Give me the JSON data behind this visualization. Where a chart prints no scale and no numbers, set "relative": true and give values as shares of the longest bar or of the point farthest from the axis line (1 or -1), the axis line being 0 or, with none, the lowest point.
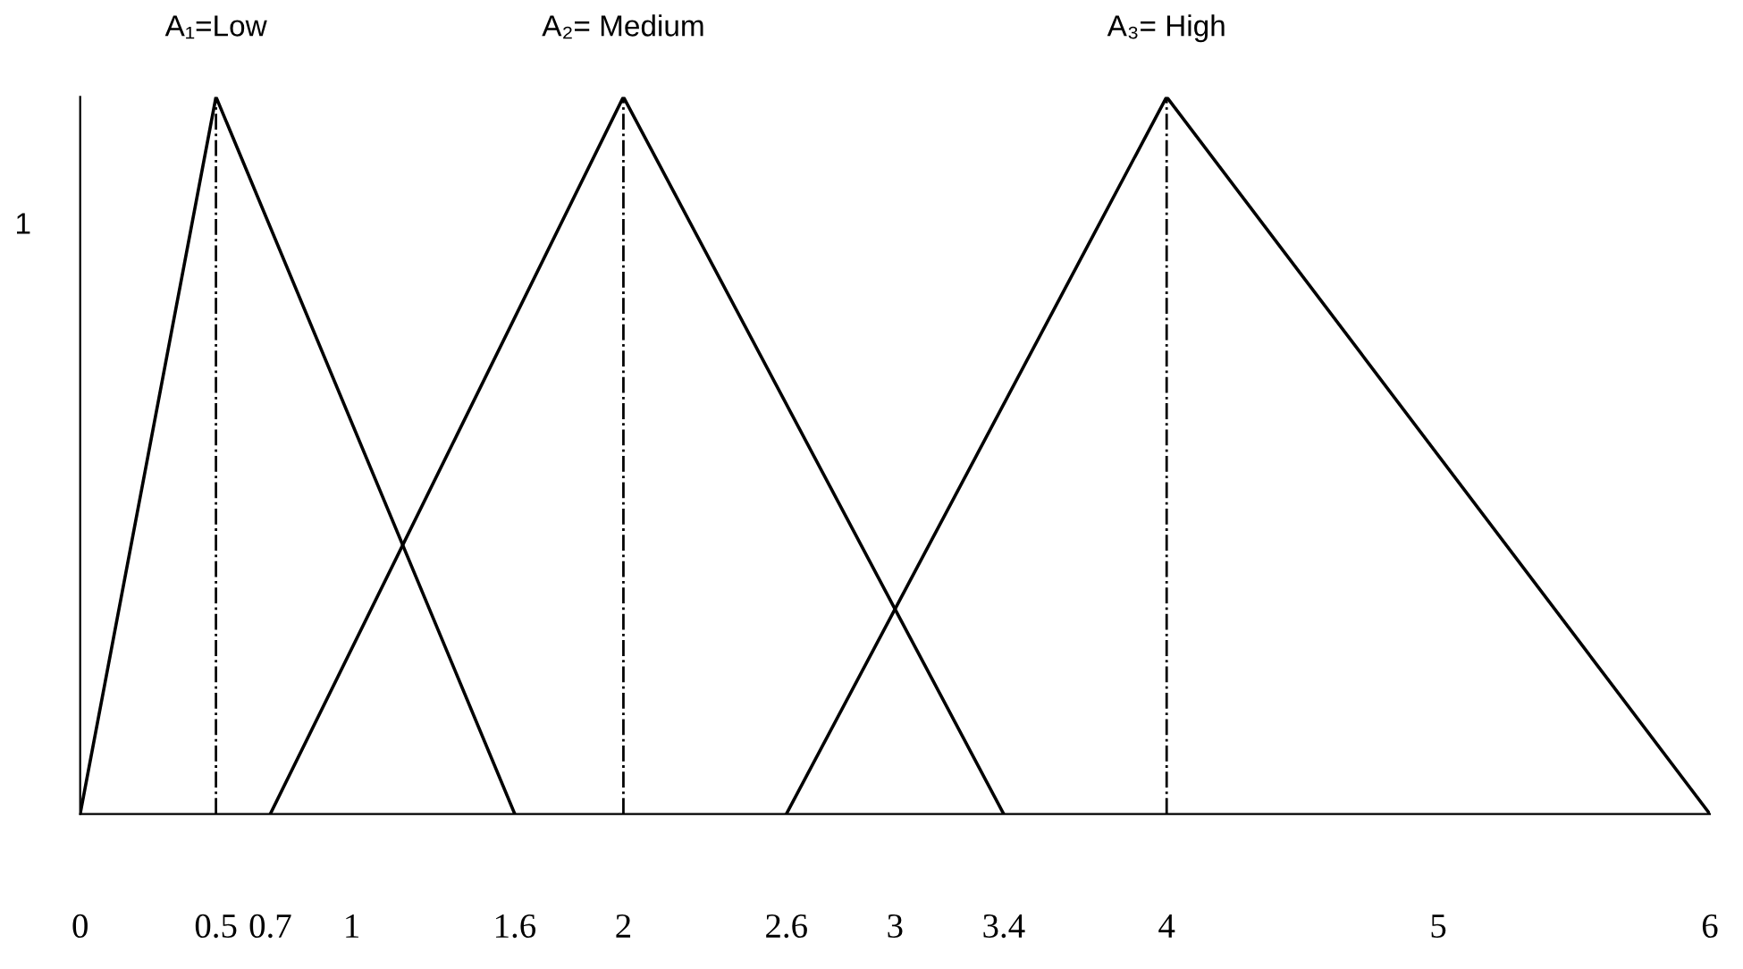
{
  "chart_data": {
    "type": "line",
    "relative": true,
    "series": [
      {
        "name": "A₁=Low",
        "color": "#000000",
        "x": [
          0,
          0.5,
          1.6
        ],
        "values": [
          0,
          1,
          0
        ]
      },
      {
        "name": "A₂= Medium",
        "color": "#000000",
        "x": [
          0.7,
          2,
          3.4
        ],
        "values": [
          0,
          1,
          0
        ]
      },
      {
        "name": "A₃= High",
        "color": "#000000",
        "x": [
          2.6,
          4,
          6
        ],
        "values": [
          0,
          1,
          0
        ]
      }
    ],
    "xlim": [
      0,
      6
    ],
    "xticks": [
      0,
      0.5,
      0.7,
      1,
      1.6,
      2,
      2.6,
      3,
      3.4,
      4,
      5,
      6
    ],
    "ref_lines": [
      {
        "axis": "x",
        "value": 0.5,
        "color": "#000000",
        "line_style": "dashdot"
      },
      {
        "axis": "x",
        "value": 2,
        "color": "#000000",
        "line_style": "dashdot"
      },
      {
        "axis": "x",
        "value": 4,
        "color": "#000000",
        "line_style": "dashdot"
      }
    ],
    "annotations": [
      "1"
    ],
    "grid": false,
    "legend": false,
    "marker": "none",
    "line_style": "solid"
  }
}
